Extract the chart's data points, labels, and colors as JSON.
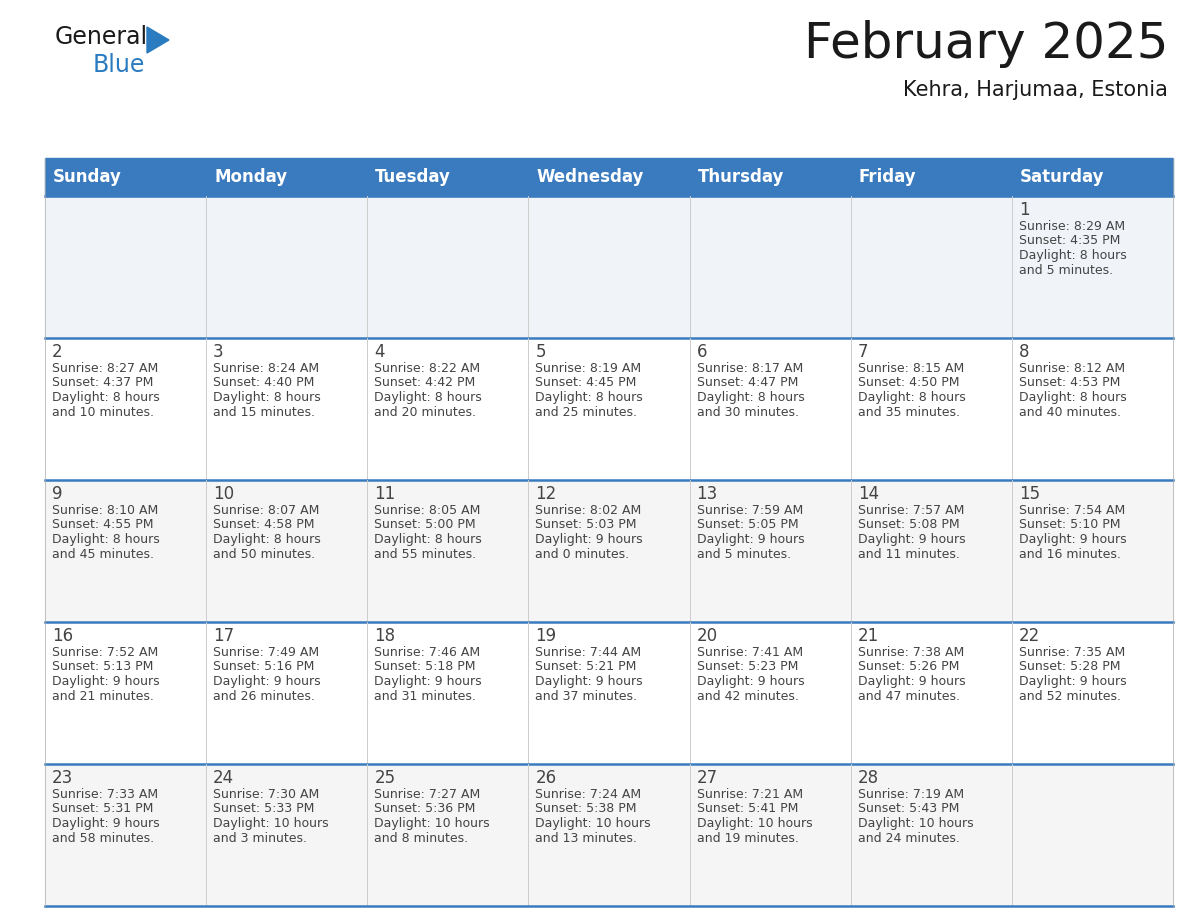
{
  "title": "February 2025",
  "subtitle": "Kehra, Harjumaa, Estonia",
  "header_color": "#3a7bbf",
  "header_text_color": "#ffffff",
  "cell_bg_color_row0": "#f0f4f8",
  "cell_bg_color_odd": "#f5f5f5",
  "cell_bg_color_even": "#ffffff",
  "days_of_week": [
    "Sunday",
    "Monday",
    "Tuesday",
    "Wednesday",
    "Thursday",
    "Friday",
    "Saturday"
  ],
  "calendar_data": [
    [
      null,
      null,
      null,
      null,
      null,
      null,
      {
        "day": "1",
        "sunrise": "8:29 AM",
        "sunset": "4:35 PM",
        "daylight1": "8 hours",
        "daylight2": "and 5 minutes."
      }
    ],
    [
      {
        "day": "2",
        "sunrise": "8:27 AM",
        "sunset": "4:37 PM",
        "daylight1": "8 hours",
        "daylight2": "and 10 minutes."
      },
      {
        "day": "3",
        "sunrise": "8:24 AM",
        "sunset": "4:40 PM",
        "daylight1": "8 hours",
        "daylight2": "and 15 minutes."
      },
      {
        "day": "4",
        "sunrise": "8:22 AM",
        "sunset": "4:42 PM",
        "daylight1": "8 hours",
        "daylight2": "and 20 minutes."
      },
      {
        "day": "5",
        "sunrise": "8:19 AM",
        "sunset": "4:45 PM",
        "daylight1": "8 hours",
        "daylight2": "and 25 minutes."
      },
      {
        "day": "6",
        "sunrise": "8:17 AM",
        "sunset": "4:47 PM",
        "daylight1": "8 hours",
        "daylight2": "and 30 minutes."
      },
      {
        "day": "7",
        "sunrise": "8:15 AM",
        "sunset": "4:50 PM",
        "daylight1": "8 hours",
        "daylight2": "and 35 minutes."
      },
      {
        "day": "8",
        "sunrise": "8:12 AM",
        "sunset": "4:53 PM",
        "daylight1": "8 hours",
        "daylight2": "and 40 minutes."
      }
    ],
    [
      {
        "day": "9",
        "sunrise": "8:10 AM",
        "sunset": "4:55 PM",
        "daylight1": "8 hours",
        "daylight2": "and 45 minutes."
      },
      {
        "day": "10",
        "sunrise": "8:07 AM",
        "sunset": "4:58 PM",
        "daylight1": "8 hours",
        "daylight2": "and 50 minutes."
      },
      {
        "day": "11",
        "sunrise": "8:05 AM",
        "sunset": "5:00 PM",
        "daylight1": "8 hours",
        "daylight2": "and 55 minutes."
      },
      {
        "day": "12",
        "sunrise": "8:02 AM",
        "sunset": "5:03 PM",
        "daylight1": "9 hours",
        "daylight2": "and 0 minutes."
      },
      {
        "day": "13",
        "sunrise": "7:59 AM",
        "sunset": "5:05 PM",
        "daylight1": "9 hours",
        "daylight2": "and 5 minutes."
      },
      {
        "day": "14",
        "sunrise": "7:57 AM",
        "sunset": "5:08 PM",
        "daylight1": "9 hours",
        "daylight2": "and 11 minutes."
      },
      {
        "day": "15",
        "sunrise": "7:54 AM",
        "sunset": "5:10 PM",
        "daylight1": "9 hours",
        "daylight2": "and 16 minutes."
      }
    ],
    [
      {
        "day": "16",
        "sunrise": "7:52 AM",
        "sunset": "5:13 PM",
        "daylight1": "9 hours",
        "daylight2": "and 21 minutes."
      },
      {
        "day": "17",
        "sunrise": "7:49 AM",
        "sunset": "5:16 PM",
        "daylight1": "9 hours",
        "daylight2": "and 26 minutes."
      },
      {
        "day": "18",
        "sunrise": "7:46 AM",
        "sunset": "5:18 PM",
        "daylight1": "9 hours",
        "daylight2": "and 31 minutes."
      },
      {
        "day": "19",
        "sunrise": "7:44 AM",
        "sunset": "5:21 PM",
        "daylight1": "9 hours",
        "daylight2": "and 37 minutes."
      },
      {
        "day": "20",
        "sunrise": "7:41 AM",
        "sunset": "5:23 PM",
        "daylight1": "9 hours",
        "daylight2": "and 42 minutes."
      },
      {
        "day": "21",
        "sunrise": "7:38 AM",
        "sunset": "5:26 PM",
        "daylight1": "9 hours",
        "daylight2": "and 47 minutes."
      },
      {
        "day": "22",
        "sunrise": "7:35 AM",
        "sunset": "5:28 PM",
        "daylight1": "9 hours",
        "daylight2": "and 52 minutes."
      }
    ],
    [
      {
        "day": "23",
        "sunrise": "7:33 AM",
        "sunset": "5:31 PM",
        "daylight1": "9 hours",
        "daylight2": "and 58 minutes."
      },
      {
        "day": "24",
        "sunrise": "7:30 AM",
        "sunset": "5:33 PM",
        "daylight1": "10 hours",
        "daylight2": "and 3 minutes."
      },
      {
        "day": "25",
        "sunrise": "7:27 AM",
        "sunset": "5:36 PM",
        "daylight1": "10 hours",
        "daylight2": "and 8 minutes."
      },
      {
        "day": "26",
        "sunrise": "7:24 AM",
        "sunset": "5:38 PM",
        "daylight1": "10 hours",
        "daylight2": "and 13 minutes."
      },
      {
        "day": "27",
        "sunrise": "7:21 AM",
        "sunset": "5:41 PM",
        "daylight1": "10 hours",
        "daylight2": "and 19 minutes."
      },
      {
        "day": "28",
        "sunrise": "7:19 AM",
        "sunset": "5:43 PM",
        "daylight1": "10 hours",
        "daylight2": "and 24 minutes."
      },
      null
    ]
  ],
  "text_color": "#444444",
  "line_color": "#3a7bbf",
  "logo_color1": "#1a1a1a",
  "logo_color2": "#2a7bbf",
  "logo_triangle_color": "#2a7bbf"
}
